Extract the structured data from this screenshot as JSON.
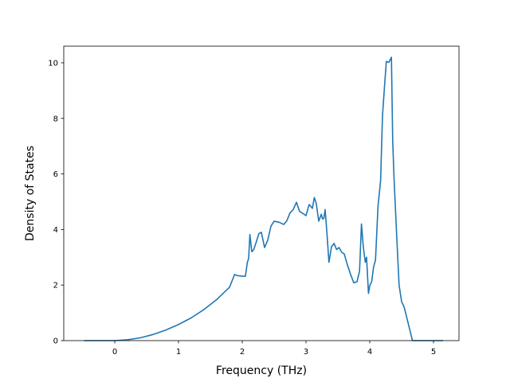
{
  "chart_data": {
    "type": "line",
    "title": "",
    "xlabel": "Frequency (THz)",
    "ylabel": "Density of States",
    "xlim": [
      -0.8,
      5.4
    ],
    "ylim": [
      0,
      10.6
    ],
    "xticks": [
      0,
      1,
      2,
      3,
      4,
      5
    ],
    "yticks": [
      0,
      2,
      4,
      6,
      8,
      10
    ],
    "grid": false,
    "legend": "none",
    "series": [
      {
        "color": "#1f77b4",
        "x": [
          -0.48,
          -0.3,
          -0.1,
          0.0,
          0.2,
          0.4,
          0.6,
          0.8,
          1.0,
          1.2,
          1.4,
          1.6,
          1.8,
          1.88,
          1.92,
          2.0,
          2.05,
          2.08,
          2.1,
          2.12,
          2.15,
          2.18,
          2.22,
          2.26,
          2.3,
          2.35,
          2.4,
          2.45,
          2.5,
          2.58,
          2.65,
          2.7,
          2.75,
          2.8,
          2.85,
          2.9,
          2.95,
          3.0,
          3.05,
          3.08,
          3.1,
          3.13,
          3.16,
          3.2,
          3.24,
          3.26,
          3.28,
          3.3,
          3.33,
          3.36,
          3.4,
          3.44,
          3.48,
          3.52,
          3.56,
          3.6,
          3.65,
          3.7,
          3.75,
          3.8,
          3.84,
          3.87,
          3.9,
          3.93,
          3.95,
          3.98,
          4.0,
          4.03,
          4.06,
          4.09,
          4.13,
          4.17,
          4.2,
          4.23,
          4.26,
          4.3,
          4.34,
          4.36,
          4.38,
          4.4,
          4.42,
          4.46,
          4.5,
          4.54,
          4.6,
          4.67,
          4.7,
          4.8,
          5.0,
          5.15
        ],
        "y": [
          0.0,
          0.0,
          0.0,
          0.0,
          0.03,
          0.1,
          0.22,
          0.38,
          0.58,
          0.82,
          1.12,
          1.48,
          1.92,
          2.38,
          2.34,
          2.32,
          2.32,
          2.82,
          2.95,
          3.82,
          3.2,
          3.28,
          3.55,
          3.85,
          3.9,
          3.35,
          3.62,
          4.12,
          4.3,
          4.26,
          4.18,
          4.32,
          4.6,
          4.72,
          4.98,
          4.65,
          4.58,
          4.5,
          4.9,
          4.82,
          4.76,
          5.15,
          4.95,
          4.3,
          4.55,
          4.38,
          4.4,
          4.72,
          3.82,
          2.82,
          3.38,
          3.5,
          3.28,
          3.35,
          3.18,
          3.12,
          2.72,
          2.38,
          2.08,
          2.12,
          2.5,
          4.2,
          3.35,
          2.82,
          3.0,
          1.7,
          1.98,
          2.12,
          2.65,
          2.9,
          4.85,
          5.75,
          8.1,
          9.1,
          10.05,
          10.02,
          10.2,
          7.2,
          5.9,
          4.9,
          3.9,
          2.0,
          1.4,
          1.2,
          0.65,
          0.0,
          0.0,
          0.0,
          0.0,
          0.0
        ]
      }
    ]
  }
}
